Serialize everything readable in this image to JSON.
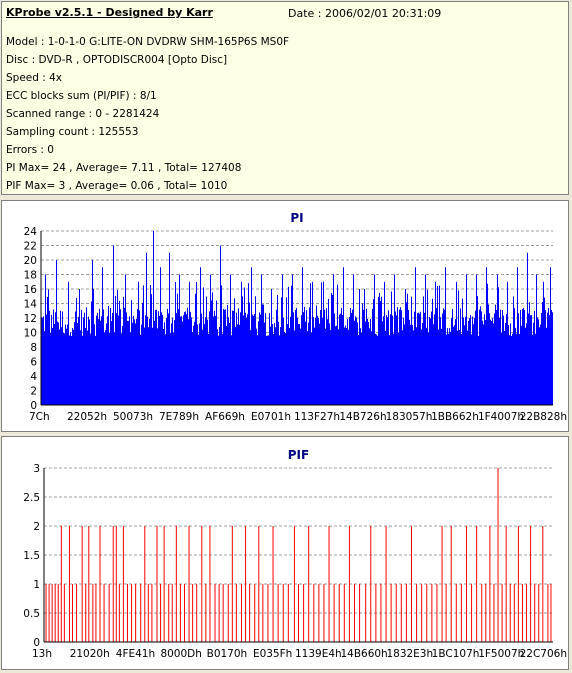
{
  "info": {
    "title": "KProbe v2.5.1 - Designed by Karr",
    "date": "Date : 2006/02/01 20:31:09",
    "lines": [
      "Model : 1-0-1-0 G:LITE-ON DVDRW SHM-165P6S MS0F",
      "Disc : DVD-R , OPTODISCR004 [Opto Disc]",
      "Speed : 4x",
      "ECC blocks sum (PI/PIF) : 8/1",
      "Scanned range : 0 - 2281424",
      "Sampling count : 125553",
      "Errors : 0",
      "PI Max= 24 , Average= 7.11 , Total= 127408",
      "PIF Max= 3 , Average= 0.06 , Total= 1010"
    ]
  },
  "colors": {
    "pi": "#0000ff",
    "pif": "#ff0000",
    "grid": "#808080",
    "title": "#000080"
  },
  "chart_data": [
    {
      "type": "bar",
      "title": "PI",
      "ylim": [
        0,
        24
      ],
      "yticks": [
        "0",
        "2",
        "4",
        "6",
        "8",
        "10",
        "12",
        "14",
        "16",
        "18",
        "20",
        "22",
        "24"
      ],
      "xticks": [
        "7Ch",
        "22052h",
        "50073h",
        "7E789h",
        "AF669h",
        "E0701h",
        "113F27h",
        "14B726h",
        "183057h",
        "1BB662h",
        "1F4007h",
        "22B828h"
      ],
      "grid": "horizontal dashed",
      "baseline": 11.5,
      "spikes": [
        [
          0.008,
          18
        ],
        [
          0.03,
          20
        ],
        [
          0.052,
          17
        ],
        [
          0.074,
          16
        ],
        [
          0.1,
          20
        ],
        [
          0.12,
          19
        ],
        [
          0.14,
          22
        ],
        [
          0.165,
          18
        ],
        [
          0.19,
          17
        ],
        [
          0.205,
          21
        ],
        [
          0.218,
          24
        ],
        [
          0.232,
          19
        ],
        [
          0.25,
          21
        ],
        [
          0.27,
          18
        ],
        [
          0.29,
          17
        ],
        [
          0.31,
          19
        ],
        [
          0.33,
          18
        ],
        [
          0.35,
          22
        ],
        [
          0.37,
          18
        ],
        [
          0.39,
          17
        ],
        [
          0.41,
          19
        ],
        [
          0.43,
          18
        ],
        [
          0.45,
          16
        ],
        [
          0.47,
          18
        ],
        [
          0.49,
          18
        ],
        [
          0.51,
          19
        ],
        [
          0.53,
          17
        ],
        [
          0.55,
          17
        ],
        [
          0.57,
          18
        ],
        [
          0.59,
          19
        ],
        [
          0.61,
          18
        ],
        [
          0.63,
          16
        ],
        [
          0.65,
          18
        ],
        [
          0.67,
          17
        ],
        [
          0.69,
          18
        ],
        [
          0.71,
          16
        ],
        [
          0.73,
          19
        ],
        [
          0.75,
          18
        ],
        [
          0.77,
          17
        ],
        [
          0.79,
          19
        ],
        [
          0.81,
          17
        ],
        [
          0.83,
          18
        ],
        [
          0.85,
          18
        ],
        [
          0.87,
          19
        ],
        [
          0.89,
          18
        ],
        [
          0.91,
          17
        ],
        [
          0.93,
          19
        ],
        [
          0.95,
          21
        ],
        [
          0.966,
          18
        ],
        [
          0.98,
          17
        ],
        [
          0.995,
          19
        ]
      ]
    },
    {
      "type": "bar",
      "title": "PIF",
      "ylim": [
        0,
        3
      ],
      "yticks": [
        "0",
        "0.5",
        "1",
        "1.5",
        "2",
        "2.5",
        "3"
      ],
      "xticks": [
        "13h",
        "21020h",
        "4FE41h",
        "8000Dh",
        "B0170h",
        "E035Fh",
        "1139E4h",
        "14B660h",
        "1832E3h",
        "1BC107h",
        "1F5007h",
        "22C706h"
      ],
      "grid": "horizontal dashed",
      "values": [
        [
          0.004,
          1
        ],
        [
          0.01,
          1
        ],
        [
          0.016,
          1
        ],
        [
          0.022,
          1
        ],
        [
          0.028,
          1
        ],
        [
          0.034,
          2
        ],
        [
          0.04,
          1
        ],
        [
          0.05,
          2
        ],
        [
          0.056,
          1
        ],
        [
          0.064,
          1
        ],
        [
          0.075,
          2
        ],
        [
          0.082,
          1
        ],
        [
          0.088,
          2
        ],
        [
          0.096,
          1
        ],
        [
          0.102,
          1
        ],
        [
          0.11,
          2
        ],
        [
          0.118,
          1
        ],
        [
          0.128,
          1
        ],
        [
          0.136,
          2
        ],
        [
          0.142,
          2
        ],
        [
          0.148,
          1
        ],
        [
          0.156,
          2
        ],
        [
          0.164,
          1
        ],
        [
          0.172,
          1
        ],
        [
          0.18,
          1
        ],
        [
          0.19,
          1
        ],
        [
          0.198,
          2
        ],
        [
          0.205,
          1
        ],
        [
          0.212,
          1
        ],
        [
          0.222,
          2
        ],
        [
          0.229,
          1
        ],
        [
          0.236,
          2
        ],
        [
          0.245,
          1
        ],
        [
          0.252,
          1
        ],
        [
          0.26,
          2
        ],
        [
          0.268,
          1
        ],
        [
          0.276,
          1
        ],
        [
          0.285,
          2
        ],
        [
          0.292,
          1
        ],
        [
          0.3,
          1
        ],
        [
          0.31,
          2
        ],
        [
          0.318,
          1
        ],
        [
          0.326,
          2
        ],
        [
          0.336,
          1
        ],
        [
          0.344,
          1
        ],
        [
          0.352,
          1
        ],
        [
          0.362,
          1
        ],
        [
          0.37,
          2
        ],
        [
          0.378,
          1
        ],
        [
          0.388,
          1
        ],
        [
          0.396,
          2
        ],
        [
          0.404,
          1
        ],
        [
          0.414,
          1
        ],
        [
          0.422,
          2
        ],
        [
          0.43,
          1
        ],
        [
          0.44,
          1
        ],
        [
          0.45,
          2
        ],
        [
          0.46,
          1
        ],
        [
          0.47,
          1
        ],
        [
          0.48,
          1
        ],
        [
          0.492,
          2
        ],
        [
          0.5,
          1
        ],
        [
          0.51,
          1
        ],
        [
          0.52,
          2
        ],
        [
          0.53,
          1
        ],
        [
          0.54,
          1
        ],
        [
          0.55,
          1
        ],
        [
          0.56,
          2
        ],
        [
          0.57,
          1
        ],
        [
          0.58,
          1
        ],
        [
          0.59,
          1
        ],
        [
          0.6,
          2
        ],
        [
          0.61,
          1
        ],
        [
          0.62,
          1
        ],
        [
          0.632,
          1
        ],
        [
          0.642,
          2
        ],
        [
          0.652,
          1
        ],
        [
          0.662,
          1
        ],
        [
          0.672,
          2
        ],
        [
          0.682,
          1
        ],
        [
          0.692,
          1
        ],
        [
          0.702,
          1
        ],
        [
          0.712,
          1
        ],
        [
          0.722,
          2
        ],
        [
          0.732,
          1
        ],
        [
          0.742,
          1
        ],
        [
          0.752,
          1
        ],
        [
          0.762,
          1
        ],
        [
          0.772,
          1
        ],
        [
          0.782,
          2
        ],
        [
          0.79,
          1
        ],
        [
          0.8,
          2
        ],
        [
          0.81,
          1
        ],
        [
          0.82,
          1
        ],
        [
          0.83,
          2
        ],
        [
          0.84,
          1
        ],
        [
          0.85,
          2
        ],
        [
          0.86,
          1
        ],
        [
          0.868,
          1
        ],
        [
          0.876,
          2
        ],
        [
          0.884,
          1
        ],
        [
          0.892,
          3
        ],
        [
          0.9,
          1
        ],
        [
          0.908,
          2
        ],
        [
          0.916,
          1
        ],
        [
          0.924,
          1
        ],
        [
          0.932,
          2
        ],
        [
          0.94,
          1
        ],
        [
          0.948,
          1
        ],
        [
          0.956,
          2
        ],
        [
          0.964,
          1
        ],
        [
          0.972,
          1
        ],
        [
          0.98,
          2
        ],
        [
          0.99,
          1
        ],
        [
          0.996,
          1
        ]
      ]
    }
  ]
}
